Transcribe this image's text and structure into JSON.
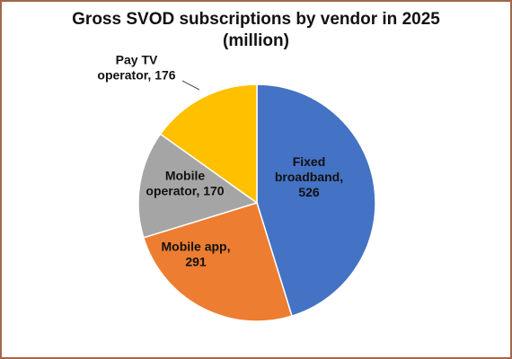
{
  "chart_data": {
    "type": "pie",
    "title": [
      "Gross SVOD subscriptions by vendor in 2025",
      "(million)"
    ],
    "slices": [
      {
        "label": [
          "Fixed",
          "broadband,",
          "526"
        ],
        "value": 526,
        "color": "#4472c4"
      },
      {
        "label": [
          "Mobile app,",
          "291"
        ],
        "value": 291,
        "color": "#ed7d31"
      },
      {
        "label": [
          "Mobile",
          "operator, 170"
        ],
        "value": 170,
        "color": "#a5a5a5"
      },
      {
        "label": [
          "Pay TV",
          "operator, 176"
        ],
        "value": 176,
        "color": "#ffc000"
      }
    ],
    "start_angle": "12 o'clock",
    "direction": "clockwise",
    "legend": "none"
  }
}
